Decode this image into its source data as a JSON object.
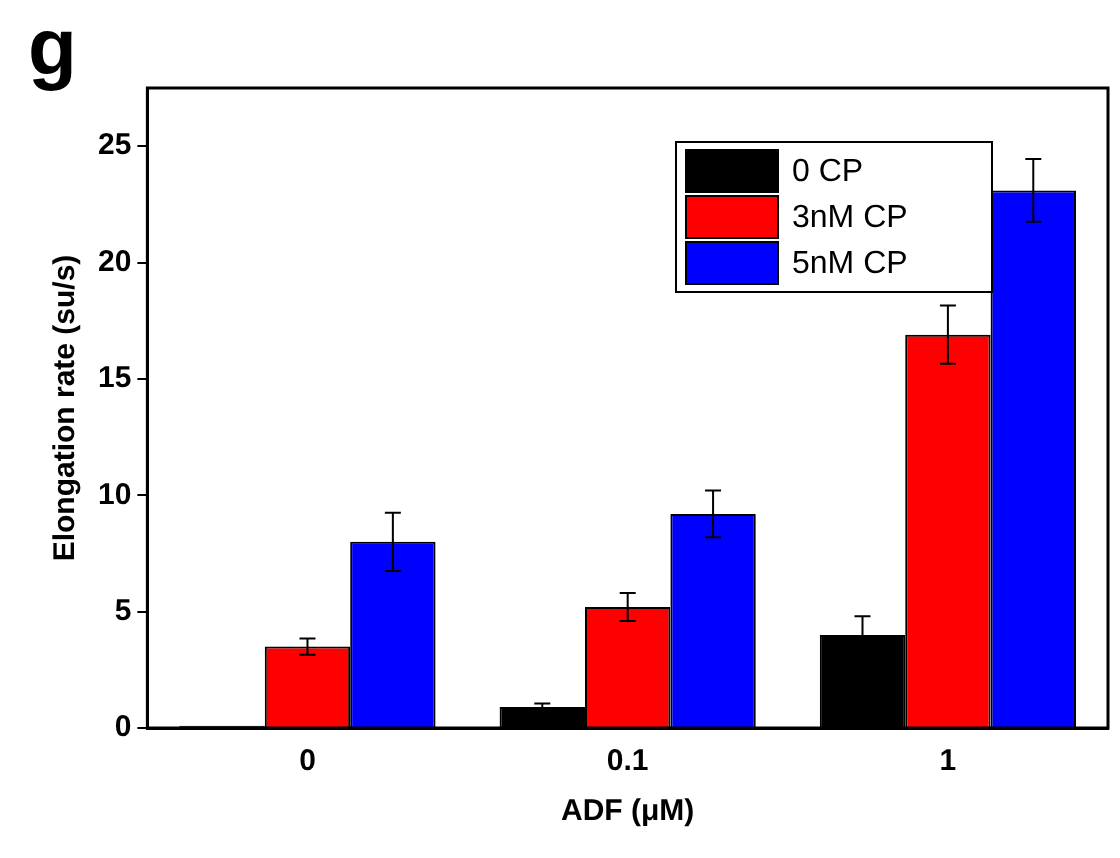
{
  "chart_data": {
    "type": "bar",
    "xlabel": "ADF (μM)",
    "ylabel": "Elongation rate (su/s)",
    "annotations": [
      "g"
    ],
    "categories": [
      "0",
      "0.1",
      "1"
    ],
    "series": [
      {
        "name": "0 CP",
        "color": "#000000",
        "values": [
          0.1,
          0.9,
          4.0
        ],
        "errors": [
          null,
          0.15,
          0.8
        ]
      },
      {
        "name": "3nM CP",
        "color": "#ff0000",
        "values": [
          3.5,
          5.2,
          16.9
        ],
        "errors": [
          0.35,
          0.6,
          1.25
        ]
      },
      {
        "name": "5nM CP",
        "color": "#0000ff",
        "values": [
          8.0,
          9.2,
          23.1
        ],
        "errors": [
          1.25,
          1.0,
          1.35
        ]
      }
    ],
    "ylim": [
      0,
      27.5
    ],
    "yticks": [
      0,
      5,
      10,
      15,
      20,
      25
    ],
    "grid": false,
    "legend": "top right"
  }
}
